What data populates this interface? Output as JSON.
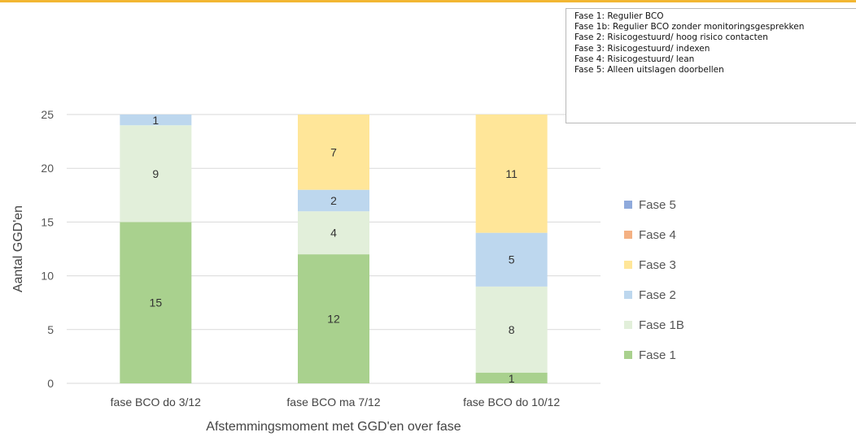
{
  "notes": [
    "Fase 1: Regulier BCO",
    "Fase 1b: Regulier BCO zonder monitoringsgesprekken",
    "Fase 2: Risicogestuurd/ hoog risico contacten",
    "Fase 3: Risicogestuurd/ indexen",
    "Fase 4: Risicogestuurd/ lean",
    "Fase 5: Alleen uitslagen doorbellen"
  ],
  "chart_data": {
    "type": "bar",
    "stacked": true,
    "xlabel": "Afstemmingsmoment met GGD'en over fase",
    "ylabel": "Aantal GGD'en",
    "ylim": [
      0,
      25
    ],
    "yticks": [
      0,
      5,
      10,
      15,
      20,
      25
    ],
    "grid": true,
    "legend_position": "right",
    "categories": [
      "fase BCO do 3/12",
      "fase BCO ma 7/12",
      "fase BCO do 10/12"
    ],
    "series": [
      {
        "name": "Fase 1",
        "color": "#a9d18e",
        "values": [
          15,
          12,
          1
        ]
      },
      {
        "name": "Fase 1B",
        "color": "#e2efda",
        "values": [
          9,
          4,
          8
        ]
      },
      {
        "name": "Fase 2",
        "color": "#bdd7ee",
        "values": [
          1,
          2,
          5
        ]
      },
      {
        "name": "Fase 3",
        "color": "#ffe699",
        "values": [
          0,
          7,
          11
        ]
      },
      {
        "name": "Fase 4",
        "color": "#f4b183",
        "values": [
          0,
          0,
          0
        ]
      },
      {
        "name": "Fase 5",
        "color": "#8faadc",
        "values": [
          0,
          0,
          0
        ]
      }
    ],
    "legend_order": [
      "Fase 5",
      "Fase 4",
      "Fase 3",
      "Fase 2",
      "Fase 1B",
      "Fase 1"
    ]
  }
}
